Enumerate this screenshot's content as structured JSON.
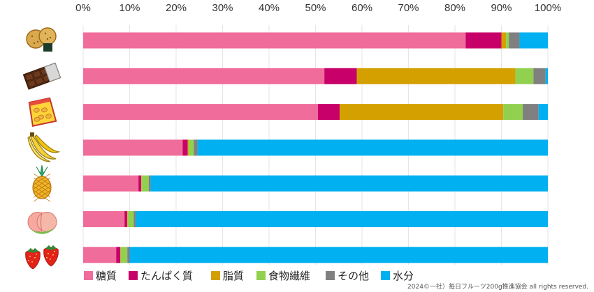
{
  "chart_data": {
    "type": "bar",
    "orientation": "horizontal",
    "stacked": true,
    "xlim": [
      0,
      100
    ],
    "x_ticks": [
      "0%",
      "10%",
      "20%",
      "30%",
      "40%",
      "50%",
      "60%",
      "70%",
      "80%",
      "90%",
      "100%"
    ],
    "grid": true,
    "categories": [
      {
        "icon": "rice-cracker-icon"
      },
      {
        "icon": "chocolate-bar-icon"
      },
      {
        "icon": "potato-chips-icon"
      },
      {
        "icon": "banana-icon"
      },
      {
        "icon": "pineapple-icon"
      },
      {
        "icon": "peach-icon"
      },
      {
        "icon": "strawberry-icon"
      }
    ],
    "series": [
      {
        "name": "糖質",
        "color": "#f06c9b",
        "values": [
          82.3,
          51.9,
          50.5,
          21.4,
          11.9,
          8.9,
          7.1
        ]
      },
      {
        "name": "たんぱく質",
        "color": "#c8006a",
        "values": [
          7.7,
          7.0,
          4.7,
          1.1,
          0.6,
          0.6,
          0.9
        ]
      },
      {
        "name": "脂質",
        "color": "#d4a000",
        "values": [
          1.0,
          34.1,
          35.2,
          0.2,
          0.1,
          0.1,
          0.1
        ]
      },
      {
        "name": "食物繊維",
        "color": "#92d050",
        "values": [
          0.6,
          3.9,
          4.2,
          1.1,
          1.5,
          1.3,
          1.4
        ]
      },
      {
        "name": "その他",
        "color": "#808080",
        "values": [
          2.3,
          2.6,
          3.4,
          0.8,
          0.4,
          0.4,
          0.5
        ]
      },
      {
        "name": "水分",
        "color": "#00b0f0",
        "values": [
          6.1,
          0.5,
          2.0,
          75.4,
          85.5,
          88.7,
          90.0
        ]
      }
    ],
    "legend_position": "bottom-left"
  },
  "credit": "2024©一社）毎日フルーツ200g推進協会 all rights reserved."
}
